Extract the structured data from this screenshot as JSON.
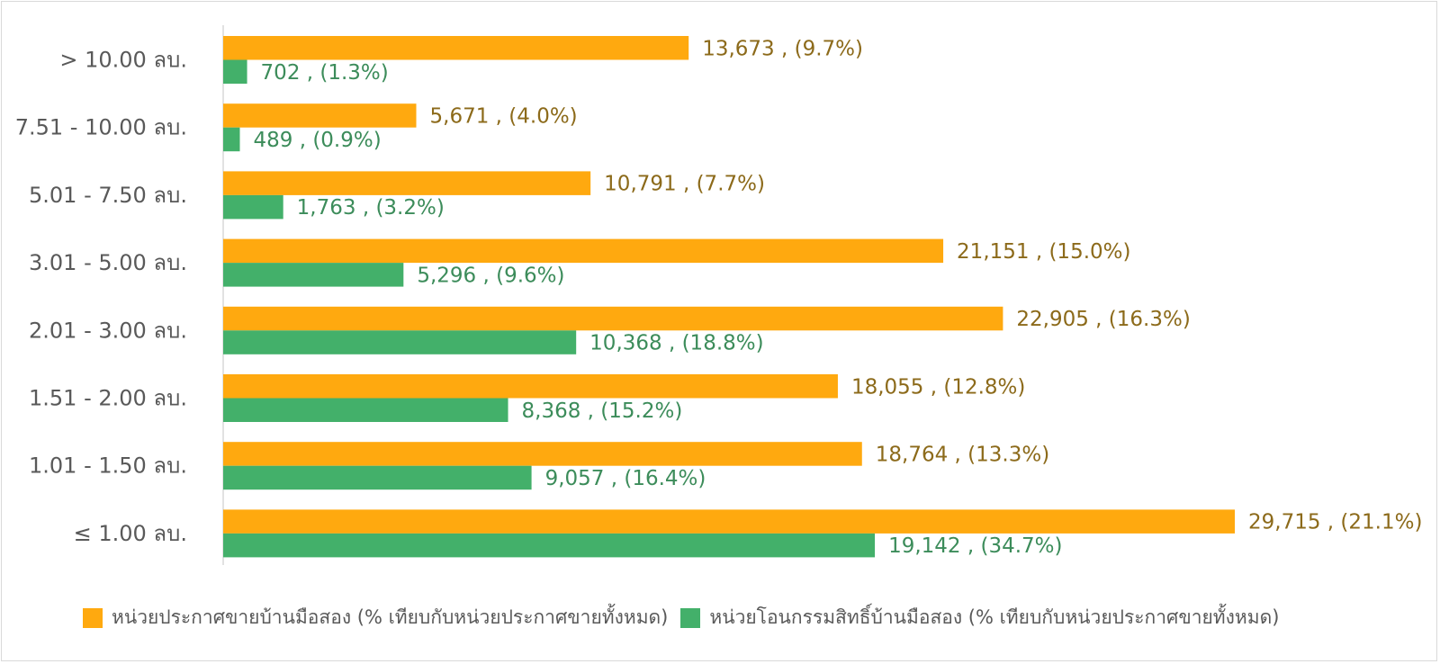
{
  "chart_data": {
    "type": "bar",
    "orientation": "horizontal",
    "categories": [
      "> 10.00 ลบ.",
      "7.51 - 10.00 ลบ.",
      "5.01 - 7.50 ลบ.",
      "3.01 - 5.00 ลบ.",
      "2.01 - 3.00 ลบ.",
      "1.51 - 2.00 ลบ.",
      "1.01 - 1.50 ลบ.",
      "≤ 1.00 ลบ."
    ],
    "series": [
      {
        "name": "หน่วยประกาศขายบ้านมือสอง (% เทียบกับหน่วยประกาศขายทั้งหมด)",
        "color": "#FFA90F",
        "label_color": "#8C6A1A",
        "values": [
          13673,
          5671,
          10791,
          21151,
          22905,
          18055,
          18764,
          29715
        ],
        "labels": [
          "13,673 , (9.7%)",
          "5,671 , (4.0%)",
          "10,791 , (7.7%)",
          "21,151 , (15.0%)",
          "22,905 , (16.3%)",
          "18,055 , (12.8%)",
          "18,764 , (13.3%)",
          "29,715 , (21.1%)"
        ]
      },
      {
        "name": "หน่วยโอนกรรมสิทธิ์บ้านมือสอง (% เทียบกับหน่วยประกาศขายทั้งหมด)",
        "color": "#43B06A",
        "label_color": "#3C8C5A",
        "values": [
          702,
          489,
          1763,
          5296,
          10368,
          8368,
          9057,
          19142
        ],
        "labels": [
          "702 , (1.3%)",
          "489 , (0.9%)",
          "1,763 , (3.2%)",
          "5,296 , (9.6%)",
          "10,368 , (18.8%)",
          "8,368 , (15.2%)",
          "9,057 , (16.4%)",
          "19,142 , (34.7%)"
        ]
      }
    ],
    "xlim": [
      0,
      29715
    ],
    "grid": false,
    "legend_position": "bottom"
  },
  "legend": {
    "items": [
      {
        "label": "หน่วยประกาศขายบ้านมือสอง (% เทียบกับหน่วยประกาศขายทั้งหมด)",
        "color": "#FFA90F"
      },
      {
        "label": "หน่วยโอนกรรมสิทธิ์บ้านมือสอง (% เทียบกับหน่วยประกาศขายทั้งหมด)",
        "color": "#43B06A"
      }
    ]
  }
}
